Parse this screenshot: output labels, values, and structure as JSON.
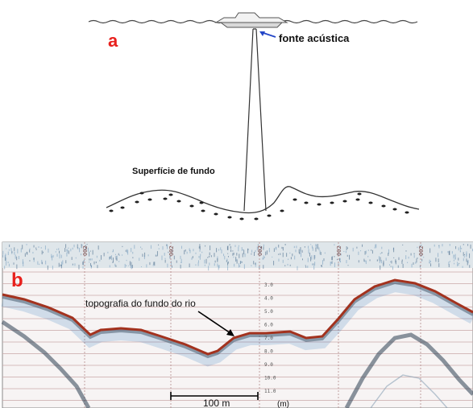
{
  "panel_a": {
    "letter": "a",
    "source_label": "fonte acústica",
    "bottom_label": "Superfície de fundo"
  },
  "panel_b": {
    "letter": "b",
    "river_label": "topografia do fundo do rio",
    "scale_label": "100 m",
    "unit_label": "(m)",
    "depth_ticks": [
      "3.0",
      "4.0",
      "5.0",
      "6.0",
      "7.0",
      "8.0",
      "9.0",
      "10.0",
      "11.0"
    ],
    "top_marks": [
      "002",
      "002",
      "002",
      "002",
      "002"
    ]
  },
  "colors": {
    "panel_letter": "#e8201c",
    "bottom_trace": "#a3321e",
    "echo_blue": "#1f6fb5",
    "grid_line": "#c9a9a9",
    "arrow_blue": "#2446c7"
  }
}
